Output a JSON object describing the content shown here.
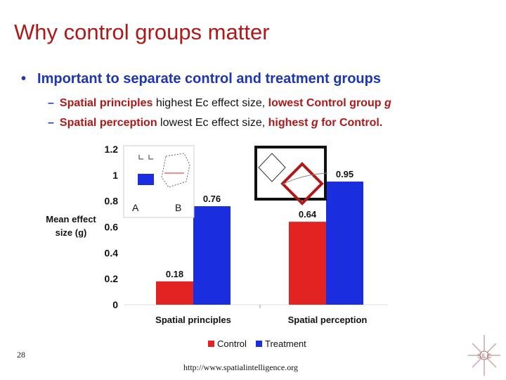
{
  "slide": {
    "title": "Why control groups matter",
    "bullet": "Important to separate control and treatment groups",
    "sub1": {
      "part1": "Spatial principles",
      "part2": " highest Ec effect size, ",
      "part3": "lowest Control group ",
      "part4": "g"
    },
    "sub2": {
      "part1": "Spatial perception",
      "part2": " lowest Ec effect size, ",
      "part3": "highest ",
      "part4": "g",
      "part5": " for Control."
    },
    "page_number": "28",
    "url": "http://www.spatialintelligence.org",
    "logo_text": "SILC"
  },
  "inset": {
    "label_a": "A",
    "label_b": "B"
  },
  "colors": {
    "title": "#b01818",
    "text_blue": "#1c36b4",
    "control": "#e32222",
    "treatment": "#1a2ee0"
  },
  "chart_data": {
    "type": "bar",
    "categories": [
      "Spatial principles",
      "Spatial perception"
    ],
    "series": [
      {
        "name": "Control",
        "values": [
          0.18,
          0.64
        ]
      },
      {
        "name": "Treatment",
        "values": [
          0.76,
          0.95
        ]
      }
    ],
    "data_labels": [
      [
        "0.18",
        "0.76"
      ],
      [
        "0.64",
        "0.95"
      ]
    ],
    "ylabel": "Mean effect size (g)",
    "ylabel_lines": [
      "Mean effect",
      "size (g)"
    ],
    "ylim": [
      0,
      1.2
    ],
    "yticks": [
      0,
      0.2,
      0.4,
      0.6,
      0.8,
      1,
      1.2
    ],
    "ytick_labels": [
      "0",
      "0.2",
      "0.4",
      "0.6",
      "0.8",
      "1",
      "1.2"
    ],
    "legend_position": "bottom",
    "grid": false
  }
}
